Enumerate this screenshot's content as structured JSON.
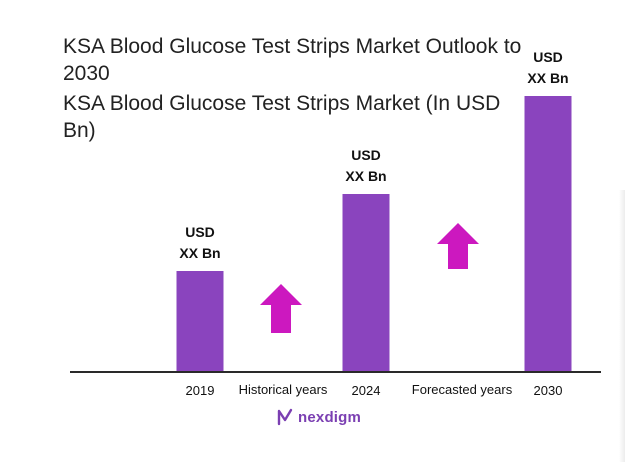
{
  "chart_data": {
    "type": "bar",
    "title": "KSA Blood Glucose Test Strips Market Outlook to 2030",
    "subtitle": "KSA Blood Glucose Test Strips Market (In USD Bn)",
    "categories": [
      "2019",
      "2024",
      "2030"
    ],
    "values": [
      1.0,
      1.77,
      2.75
    ],
    "bar_labels": [
      {
        "line1": "USD",
        "line2": "XX Bn"
      },
      {
        "line1": "USD",
        "line2": "XX Bn"
      },
      {
        "line1": "USD",
        "line2": "XX Bn"
      }
    ],
    "period_labels": [
      "Historical years",
      "Forecasted years"
    ],
    "ylim": [
      0,
      2.8
    ],
    "grid": false,
    "legend": "none",
    "bar_color": "#8a44be",
    "arrow_color": "#cc18bf"
  },
  "brand": {
    "name": "nexdigm",
    "color": "#7b3fb2"
  }
}
